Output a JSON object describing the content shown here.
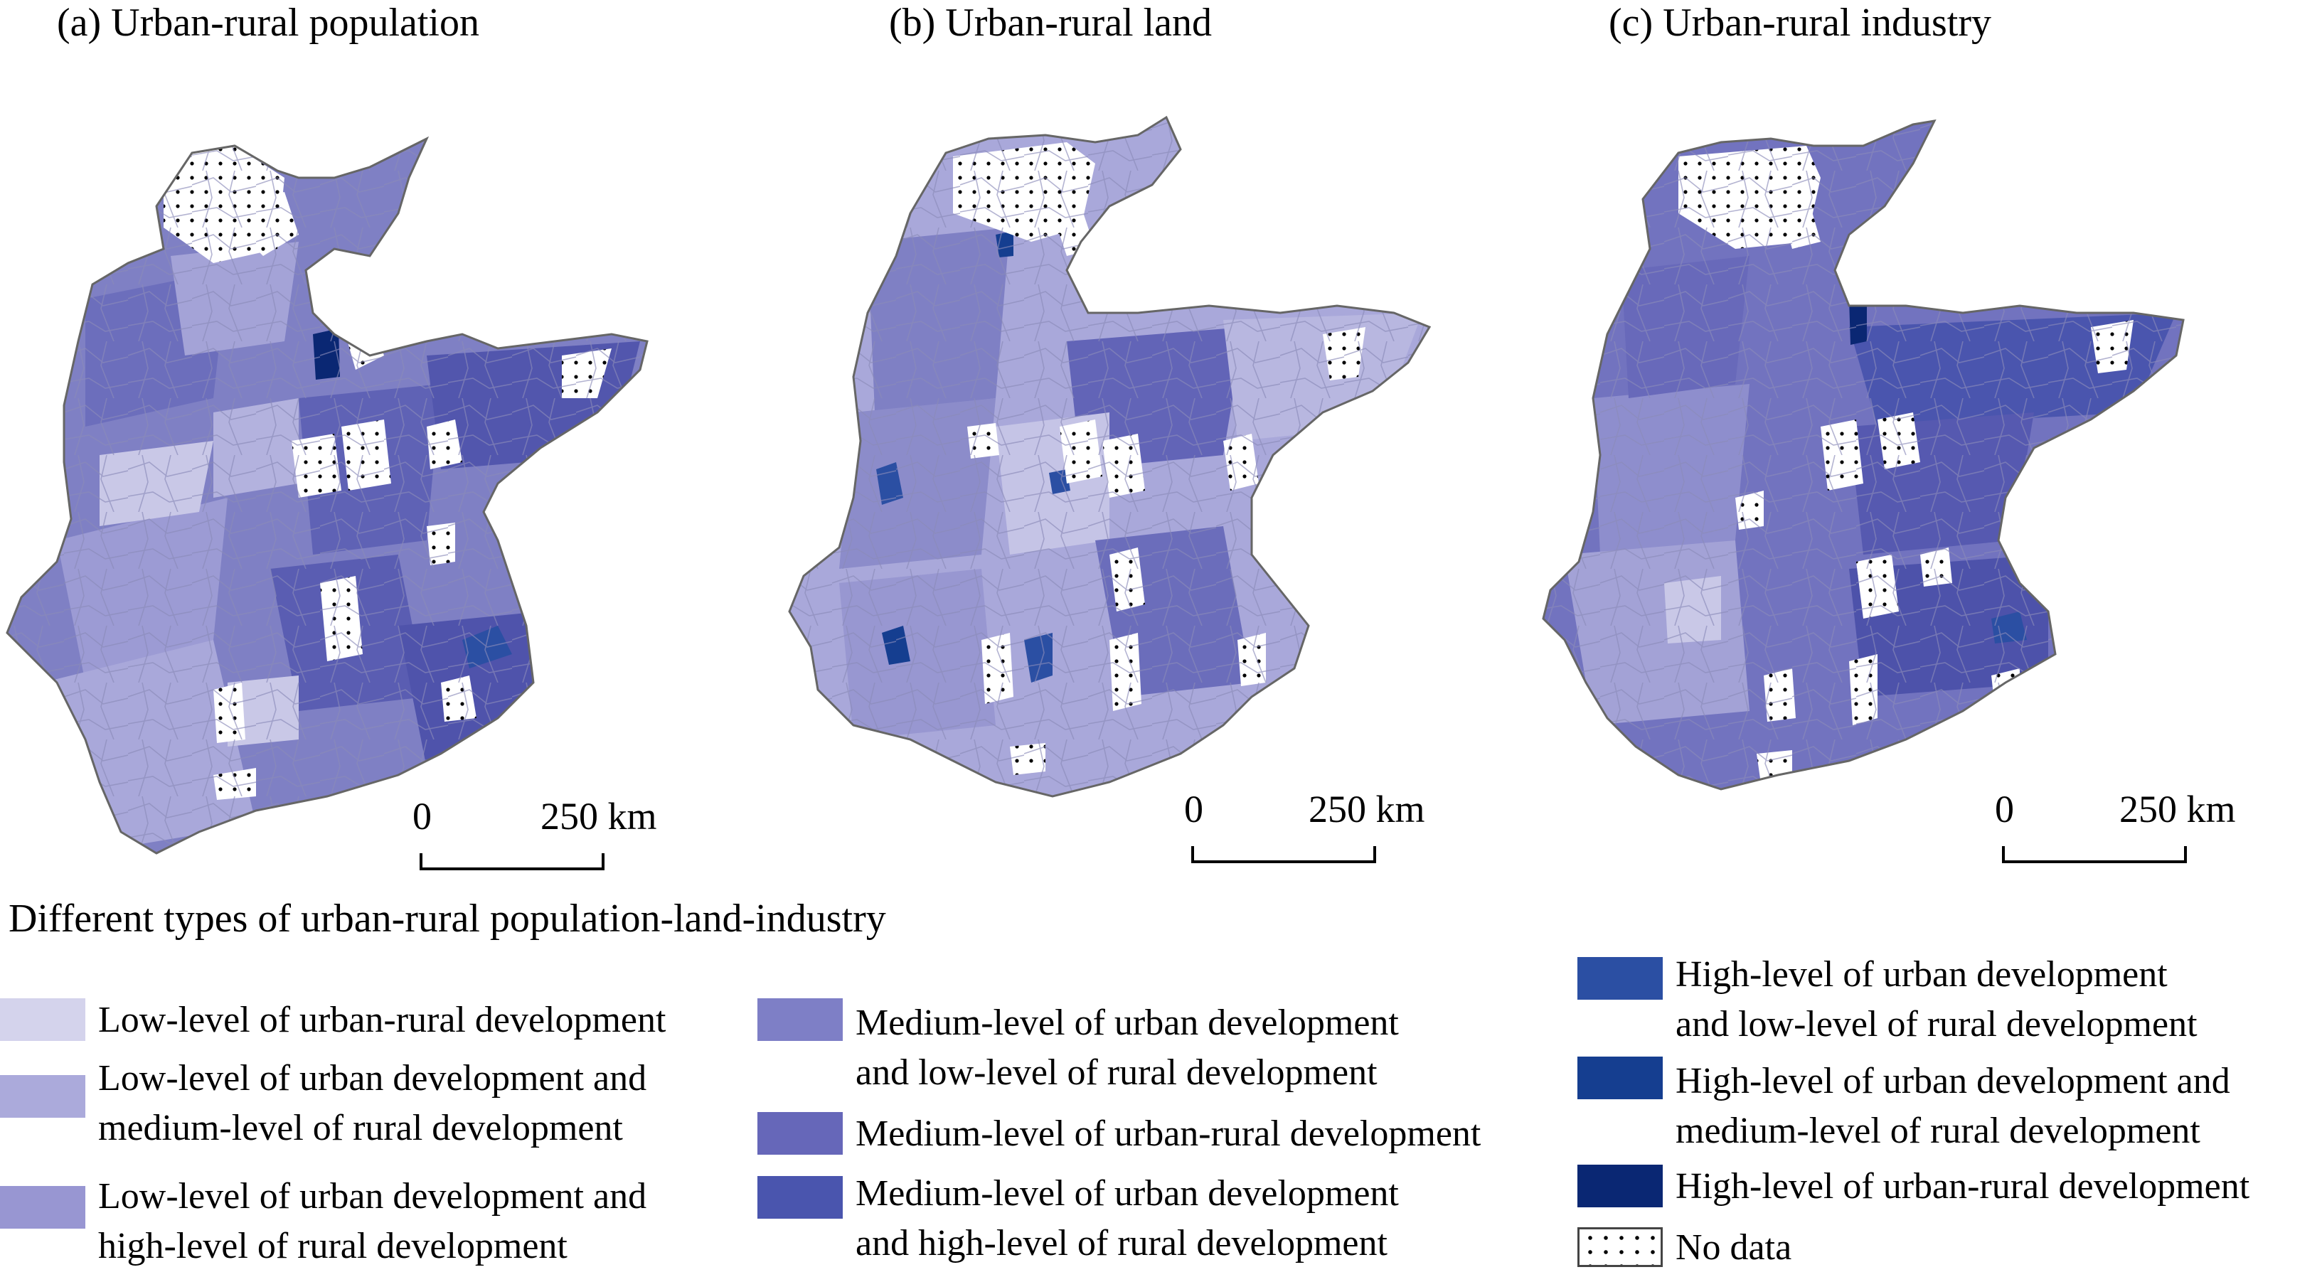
{
  "panels": [
    {
      "title": "(a) Urban-rural population",
      "scale_zero": "0",
      "scale_dist": "250 km"
    },
    {
      "title": "(b) Urban-rural land",
      "scale_zero": "0",
      "scale_dist": "250 km"
    },
    {
      "title": "(c) Urban-rural industry",
      "scale_zero": "0",
      "scale_dist": "250 km"
    }
  ],
  "legend": {
    "title": "Different types of urban-rural population-land-industry",
    "items": [
      {
        "line1": "Low-level of urban-rural development",
        "line2": "",
        "color": "#d4d3ec"
      },
      {
        "line1": "Low-level of urban development and",
        "line2": "medium-level of rural development",
        "color": "#abaadb"
      },
      {
        "line1": "Low-level of urban development and",
        "line2": "high-level of rural development",
        "color": "#9896d2"
      },
      {
        "line1": "Medium-level of urban development",
        "line2": "and low-level of rural development",
        "color": "#7e7fc6"
      },
      {
        "line1": "Medium-level of urban-rural development",
        "line2": "",
        "color": "#6667b9"
      },
      {
        "line1": "Medium-level of urban development",
        "line2": "and high-level of rural development",
        "color": "#4a55ae"
      },
      {
        "line1": "High-level of urban development",
        "line2": "and low-level of rural development",
        "color": "#2b4fa3"
      },
      {
        "line1": "High-level of urban development and",
        "line2": "medium-level of rural development",
        "color": "#153e90"
      },
      {
        "line1": "High-level of urban-rural development",
        "line2": "",
        "color": "#0a2773"
      },
      {
        "line1": "No data",
        "line2": "",
        "color": "#ffffff"
      }
    ]
  }
}
